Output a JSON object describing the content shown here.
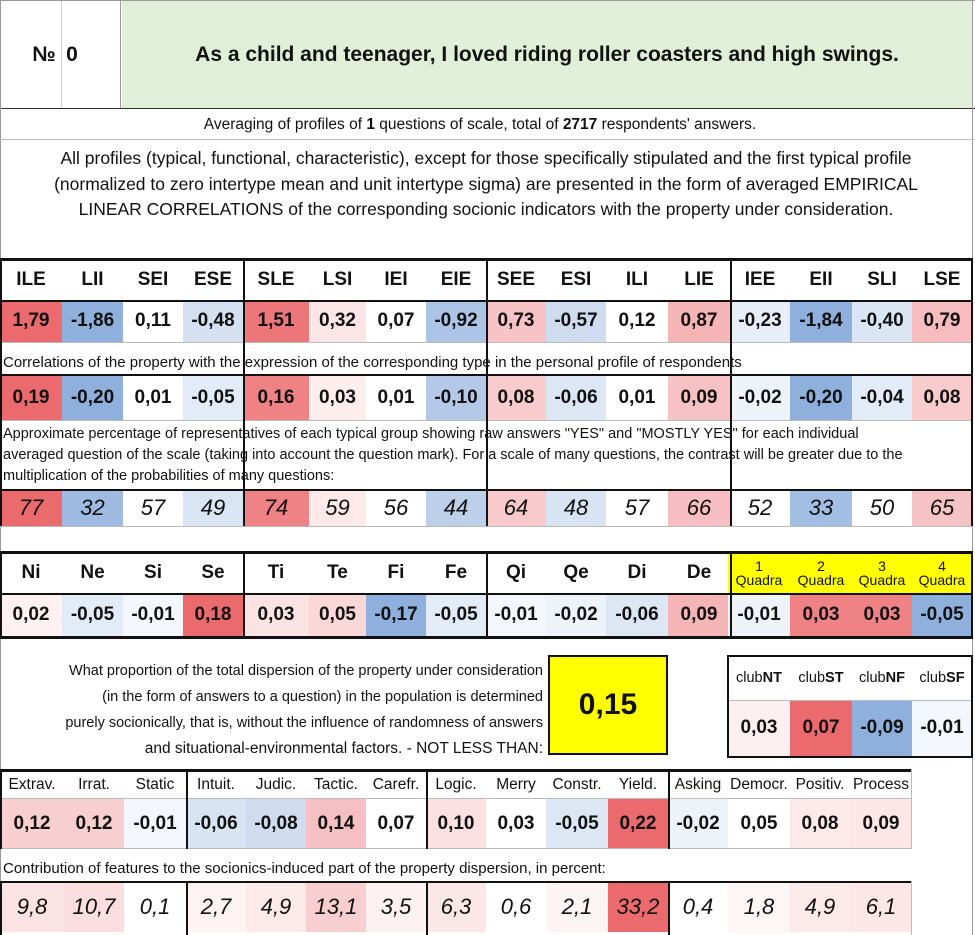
{
  "header": {
    "number_label": "№",
    "number_value": "0",
    "question": "As a child and teenager, I loved riding roller coasters and high swings."
  },
  "summary": {
    "line_prefix": "Averaging of profiles of ",
    "questions_count": "1",
    "line_middle": " questions of scale, total of ",
    "respondents": "2717",
    "line_suffix": " respondents' answers."
  },
  "intro": [
    "All profiles (typical, functional, characteristic), except for those specifically stipulated and the first typical profile",
    "(normalized to zero intertype mean and unit intertype sigma) are presented in the form of averaged EMPIRICAL",
    "LINEAR CORRELATIONS of the corresponding socionic indicators with the property under consideration."
  ],
  "types": {
    "headers": [
      "ILE",
      "LII",
      "SEI",
      "ESE",
      "SLE",
      "LSI",
      "IEI",
      "EIE",
      "SEE",
      "ESI",
      "ILI",
      "LIE",
      "IEE",
      "EII",
      "SLI",
      "LSE"
    ],
    "profile": [
      "1,79",
      "-1,86",
      "0,11",
      "-0,48",
      "1,51",
      "0,32",
      "0,07",
      "-0,92",
      "0,73",
      "-0,57",
      "0,12",
      "0,87",
      "-0,23",
      "-1,84",
      "-0,40",
      "0,79"
    ],
    "profile_colors": [
      "#ea6a6d",
      "#8fb0dc",
      "#ffffff",
      "#d5e1f1",
      "#ec7679",
      "#fbe5e6",
      "#ffffff",
      "#acc4e6",
      "#f7c3c5",
      "#cfdcef",
      "#ffffff",
      "#f5b4b6",
      "#e7eef8",
      "#8fb0dc",
      "#dbe6f4",
      "#f6bcbe"
    ],
    "corr_caption": "Correlations of the property with the expression of the corresponding type in the personal profile of respondents",
    "correlations": [
      "0,19",
      "-0,20",
      "0,01",
      "-0,05",
      "0,16",
      "0,03",
      "0,01",
      "-0,10",
      "0,08",
      "-0,06",
      "0,01",
      "0,09",
      "-0,02",
      "-0,20",
      "-0,04",
      "0,08"
    ],
    "corr_colors": [
      "#ea6a6d",
      "#8fb0dc",
      "#ffffff",
      "#e3ebf6",
      "#ee8285",
      "#fdeeee",
      "#ffffff",
      "#b4c9e8",
      "#f8cbcd",
      "#dde7f4",
      "#ffffff",
      "#f6c2c4",
      "#eef3fa",
      "#8fb0dc",
      "#e3ebf6",
      "#f8cbcd"
    ],
    "pct_caption": [
      "Approximate percentage of representatives of each typical group showing raw answers \"YES\" and \"MOSTLY YES\" for each individual",
      "averaged question of the scale (taking into account the question mark). For a scale of many questions, the contrast will be greater due to the",
      "multiplication of the probabilities of many questions:"
    ],
    "percentages": [
      "77",
      "32",
      "57",
      "49",
      "74",
      "59",
      "56",
      "44",
      "64",
      "48",
      "57",
      "66",
      "52",
      "33",
      "50",
      "65"
    ],
    "pct_colors": [
      "#ea6a6d",
      "#9fbbe2",
      "#ffffff",
      "#dae5f3",
      "#ee8285",
      "#fde9ea",
      "#ffffff",
      "#bcd0ea",
      "#f8c9cb",
      "#d9e4f3",
      "#ffffff",
      "#f6bec0",
      "#ffffff",
      "#a3bee3",
      "#ffffff",
      "#f6c3c5"
    ]
  },
  "functions": {
    "headers": [
      "Ni",
      "Ne",
      "Si",
      "Se",
      "Ti",
      "Te",
      "Fi",
      "Fe",
      "Qi",
      "Qe",
      "Di",
      "De"
    ],
    "values": [
      "0,02",
      "-0,05",
      "-0,01",
      "0,18",
      "0,03",
      "0,05",
      "-0,17",
      "-0,05",
      "-0,01",
      "-0,02",
      "-0,06",
      "0,09"
    ],
    "colors": [
      "#fdf1f1",
      "#e3ebf6",
      "#f3f6fb",
      "#ea6a6d",
      "#fbe3e4",
      "#fad7d8",
      "#8fb0dc",
      "#e3ebf6",
      "#f3f6fb",
      "#eef3fa",
      "#dde7f4",
      "#f5b4b6"
    ]
  },
  "quadras": {
    "headers": [
      [
        "1",
        "Quadra"
      ],
      [
        "2",
        "Quadra"
      ],
      [
        "3",
        "Quadra"
      ],
      [
        "4",
        "Quadra"
      ]
    ],
    "values": [
      "-0,01",
      "0,03",
      "0,03",
      "-0,05"
    ],
    "colors": [
      "#eef3fa",
      "#ee8285",
      "#ee8285",
      "#8fb0dc"
    ],
    "header_bg": "#ffff00"
  },
  "dispersion": {
    "text": [
      "What proportion of the total dispersion of the property under consideration",
      "(in the form of answers to a question) in the population is determined",
      "purely socionically, that is, without the influence of randomness of answers",
      "and situational-environmental factors. - NOT LESS THAN:"
    ],
    "value": "0,15",
    "value_bg": "#ffff00"
  },
  "clubs": {
    "headers": [
      [
        "club",
        "NT"
      ],
      [
        "club",
        "ST"
      ],
      [
        "club",
        "NF"
      ],
      [
        "club",
        "SF"
      ]
    ],
    "values": [
      "0,03",
      "0,07",
      "-0,09",
      "-0,01"
    ],
    "colors": [
      "#fdf0f0",
      "#ea6a6d",
      "#8fb0dc",
      "#f3f6fb"
    ]
  },
  "traits": {
    "headers": [
      "Extrav.",
      "Irrat.",
      "Static",
      "Intuit.",
      "Judic.",
      "Tactic.",
      "Carefr.",
      "Logic.",
      "Merry",
      "Constr.",
      "Yield.",
      "Asking",
      "Democr.",
      "Positiv.",
      "Process"
    ],
    "values": [
      "0,12",
      "0,12",
      "-0,01",
      "-0,06",
      "-0,08",
      "0,14",
      "0,07",
      "0,10",
      "0,03",
      "-0,05",
      "0,22",
      "-0,02",
      "0,05",
      "0,08",
      "0,09"
    ],
    "colors": [
      "#f8cfd1",
      "#f8cfd1",
      "#f3f6fb",
      "#d9e4f3",
      "#cfdcef",
      "#f6bfc1",
      "#ffffff",
      "#fbe0e1",
      "#ffffff",
      "#dde7f4",
      "#ea6a6d",
      "#eef3fa",
      "#ffffff",
      "#fde9ea",
      "#fde6e7"
    ],
    "contrib_caption": "Contribution of features to the socionics-induced part of the property dispersion, in percent:",
    "contributions": [
      "9,8",
      "10,7",
      "0,1",
      "2,7",
      "4,9",
      "13,1",
      "3,5",
      "6,3",
      "0,6",
      "2,1",
      "33,2",
      "0,4",
      "1,8",
      "4,9",
      "6,1"
    ],
    "contrib_colors": [
      "#fbe2e3",
      "#fbdfe0",
      "#ffffff",
      "#fdf3f3",
      "#fceaea",
      "#f8cfd1",
      "#fdf1f1",
      "#fce7e8",
      "#ffffff",
      "#fdf5f5",
      "#ea6a6d",
      "#ffffff",
      "#fdf6f6",
      "#fceaea",
      "#fce6e7"
    ]
  }
}
